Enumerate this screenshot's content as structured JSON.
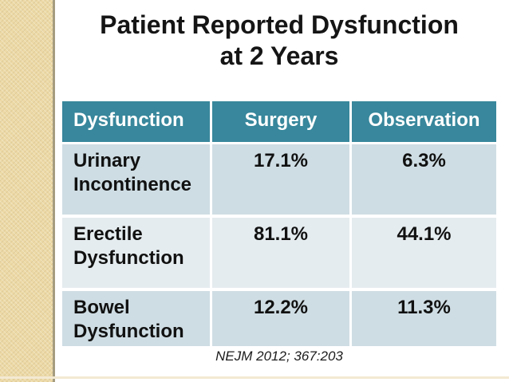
{
  "slide": {
    "title_line1": "Patient Reported Dysfunction",
    "title_line2": "at 2 Years",
    "citation": "NEJM 2012; 367:203"
  },
  "table": {
    "headers": [
      "Dysfunction",
      "Surgery",
      "Observation"
    ],
    "rows": [
      {
        "label": "Urinary Incontinence",
        "surgery": "17.1%",
        "observation": "6.3%"
      },
      {
        "label": "Erectile Dysfunction",
        "surgery": "81.1%",
        "observation": "44.1%"
      },
      {
        "label": "Bowel Dysfunction",
        "surgery": "12.2%",
        "observation": "11.3%"
      }
    ]
  },
  "chart_data": {
    "type": "table",
    "title": "Patient Reported Dysfunction at 2 Years",
    "columns": [
      "Dysfunction",
      "Surgery",
      "Observation"
    ],
    "rows": [
      [
        "Urinary Incontinence",
        "17.1%",
        "6.3%"
      ],
      [
        "Erectile Dysfunction",
        "81.1%",
        "44.1%"
      ],
      [
        "Bowel Dysfunction",
        "12.2%",
        "11.3%"
      ]
    ],
    "source": "NEJM 2012; 367:203"
  },
  "colors": {
    "header_bg": "#38879c",
    "header_text": "#ffffff",
    "row_dark": "#cedde3",
    "row_light": "#e5ecef",
    "sidebar_tan": "#ecd9a6",
    "sidebar_edge": "#a59c80",
    "title_text": "#151515"
  }
}
